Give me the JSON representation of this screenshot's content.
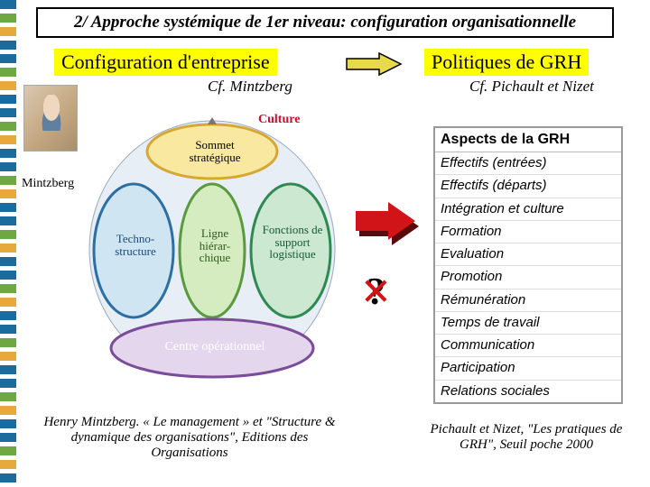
{
  "title": "2/ Approche systémique de 1er niveau: configuration organisationnelle",
  "left": {
    "heading": "Configuration d'entreprise",
    "subheading": "Cf. Mintzberg",
    "photo_label": "Mintzberg",
    "caption": "Henry Mintzberg. « Le management » et \"Structure & dynamique des organisations\", Editions des Organisations"
  },
  "right": {
    "heading": "Politiques de GRH",
    "subheading": "Cf. Pichault et Nizet",
    "caption": "Pichault et Nizet, \"Les pratiques de GRH\", Seuil poche 2000"
  },
  "grh": {
    "header": "Aspects de la GRH",
    "items": [
      "Effectifs (entrées)",
      "Effectifs (départs)",
      "Intégration et culture",
      "Formation",
      "Evaluation",
      "Promotion",
      "Rémunération",
      "Temps de travail",
      "Communication",
      "Participation",
      "Relations sociales"
    ]
  },
  "mintzberg_diagram": {
    "culture_label": "Culture",
    "parts": {
      "sommet": "Sommet stratégique",
      "techno": "Techno-structure",
      "ligne": "Ligne hiérar-chique",
      "support": "Fonctions de support logistique",
      "centre": "Centre opérationnel"
    },
    "colors": {
      "sommet_fill": "#f9e9a0",
      "sommet_stroke": "#d7a736",
      "techno_fill": "#cfe6f2",
      "techno_stroke": "#2c6fa3",
      "ligne_fill": "#d5ecc0",
      "ligne_stroke": "#5a9a3e",
      "support_fill": "#cde8d0",
      "support_stroke": "#2f8a52",
      "centre_fill": "#e4d6ec",
      "centre_stroke": "#7a4c99",
      "outer": "#c8d4e8"
    }
  },
  "arrows": {
    "small_arrow_color": "#e8d94a",
    "small_arrow_stroke": "#000000",
    "big_arrow_fill": "#d01418",
    "big_arrow_shadow": "#5a0a0c"
  },
  "question": "?",
  "colors": {
    "highlight": "#ffff00",
    "title_border": "#000000",
    "text": "#000000",
    "red": "#d01418"
  },
  "fonts": {
    "title_size": 19,
    "heading_size": 22,
    "subheading_size": 17,
    "caption_size": 15
  }
}
